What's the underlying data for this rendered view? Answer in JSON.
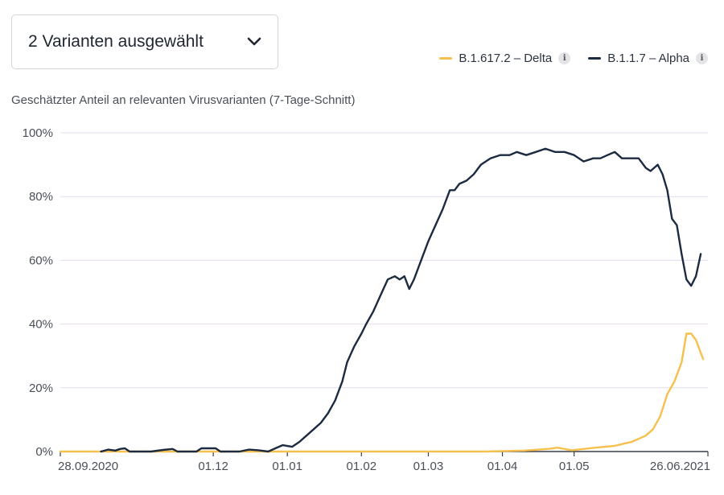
{
  "selector": {
    "label": "2 Varianten ausgewählt",
    "icon": "chevron-down-icon"
  },
  "legend": [
    {
      "label": "B.1.617.2 – Delta",
      "color": "#f5c04e",
      "icon": "info-icon"
    },
    {
      "label": "B.1.1.7 – Alpha",
      "color": "#1c2b40",
      "icon": "info-icon"
    }
  ],
  "chart_data": {
    "type": "line",
    "title": "Geschätzter Anteil an relevanten Virusvarianten (7-Tage-Schnitt)",
    "y_ticks": [
      "0%",
      "20%",
      "40%",
      "60%",
      "80%",
      "100%"
    ],
    "ylim": [
      0,
      100
    ],
    "x_ticks": [
      {
        "label": "28.09.2020",
        "date": "2020-09-28"
      },
      {
        "label": "01.12",
        "date": "2020-12-01"
      },
      {
        "label": "01.01",
        "date": "2021-01-01"
      },
      {
        "label": "01.02",
        "date": "2021-02-01"
      },
      {
        "label": "01.03",
        "date": "2021-03-01"
      },
      {
        "label": "01.04",
        "date": "2021-04-01"
      },
      {
        "label": "01.05",
        "date": "2021-05-01"
      },
      {
        "label": "26.06.2021",
        "date": "2021-06-26"
      }
    ],
    "xlim": [
      "2020-09-28",
      "2021-06-26"
    ],
    "grid": true,
    "legend_position": "top-right",
    "series": [
      {
        "name": "B.1.617.2 – Delta",
        "color": "#f5c04e",
        "points": [
          [
            "2020-09-28",
            0
          ],
          [
            "2021-03-25",
            0
          ],
          [
            "2021-04-10",
            0.3
          ],
          [
            "2021-04-20",
            0.8
          ],
          [
            "2021-04-24",
            1.2
          ],
          [
            "2021-04-30",
            0.4
          ],
          [
            "2021-05-05",
            0.8
          ],
          [
            "2021-05-10",
            1.2
          ],
          [
            "2021-05-14",
            1.5
          ],
          [
            "2021-05-18",
            1.8
          ],
          [
            "2021-05-22",
            2.5
          ],
          [
            "2021-05-25",
            3
          ],
          [
            "2021-05-28",
            4
          ],
          [
            "2021-05-31",
            5
          ],
          [
            "2021-06-03",
            7
          ],
          [
            "2021-06-06",
            11
          ],
          [
            "2021-06-09",
            18
          ],
          [
            "2021-06-12",
            22
          ],
          [
            "2021-06-15",
            28
          ],
          [
            "2021-06-17",
            37
          ],
          [
            "2021-06-19",
            37
          ],
          [
            "2021-06-21",
            35
          ],
          [
            "2021-06-24",
            29
          ]
        ]
      },
      {
        "name": "B.1.1.7 – Alpha",
        "color": "#1c2b40",
        "points": [
          [
            "2020-10-15",
            0
          ],
          [
            "2020-10-18",
            0.6
          ],
          [
            "2020-10-21",
            0.3
          ],
          [
            "2020-10-23",
            0.8
          ],
          [
            "2020-10-25",
            1
          ],
          [
            "2020-10-27",
            0
          ],
          [
            "2020-11-05",
            0
          ],
          [
            "2020-11-10",
            0.5
          ],
          [
            "2020-11-14",
            0.8
          ],
          [
            "2020-11-16",
            0
          ],
          [
            "2020-11-24",
            0
          ],
          [
            "2020-11-26",
            1
          ],
          [
            "2020-12-02",
            1
          ],
          [
            "2020-12-04",
            0
          ],
          [
            "2020-12-12",
            0
          ],
          [
            "2020-12-16",
            0.6
          ],
          [
            "2020-12-20",
            0.4
          ],
          [
            "2020-12-24",
            0
          ],
          [
            "2020-12-27",
            1
          ],
          [
            "2020-12-30",
            2
          ],
          [
            "2021-01-03",
            1.5
          ],
          [
            "2021-01-06",
            3
          ],
          [
            "2021-01-09",
            5
          ],
          [
            "2021-01-12",
            7
          ],
          [
            "2021-01-15",
            9
          ],
          [
            "2021-01-18",
            12
          ],
          [
            "2021-01-21",
            16
          ],
          [
            "2021-01-24",
            22
          ],
          [
            "2021-01-26",
            28
          ],
          [
            "2021-01-29",
            33
          ],
          [
            "2021-02-01",
            37
          ],
          [
            "2021-02-03",
            40
          ],
          [
            "2021-02-06",
            44
          ],
          [
            "2021-02-09",
            49
          ],
          [
            "2021-02-12",
            54
          ],
          [
            "2021-02-15",
            55
          ],
          [
            "2021-02-17",
            54
          ],
          [
            "2021-02-19",
            55
          ],
          [
            "2021-02-21",
            51
          ],
          [
            "2021-02-23",
            54
          ],
          [
            "2021-02-26",
            60
          ],
          [
            "2021-03-01",
            66
          ],
          [
            "2021-03-04",
            71
          ],
          [
            "2021-03-07",
            76
          ],
          [
            "2021-03-10",
            82
          ],
          [
            "2021-03-12",
            82
          ],
          [
            "2021-03-14",
            84
          ],
          [
            "2021-03-17",
            85
          ],
          [
            "2021-03-20",
            87
          ],
          [
            "2021-03-23",
            90
          ],
          [
            "2021-03-27",
            92
          ],
          [
            "2021-03-31",
            93
          ],
          [
            "2021-04-04",
            93
          ],
          [
            "2021-04-07",
            94
          ],
          [
            "2021-04-11",
            93
          ],
          [
            "2021-04-15",
            94
          ],
          [
            "2021-04-19",
            95
          ],
          [
            "2021-04-23",
            94
          ],
          [
            "2021-04-27",
            94
          ],
          [
            "2021-05-01",
            93
          ],
          [
            "2021-05-05",
            91
          ],
          [
            "2021-05-09",
            92
          ],
          [
            "2021-05-12",
            92
          ],
          [
            "2021-05-15",
            93
          ],
          [
            "2021-05-18",
            94
          ],
          [
            "2021-05-21",
            92
          ],
          [
            "2021-05-25",
            92
          ],
          [
            "2021-05-28",
            92
          ],
          [
            "2021-05-31",
            89
          ],
          [
            "2021-06-02",
            88
          ],
          [
            "2021-06-05",
            90
          ],
          [
            "2021-06-07",
            87
          ],
          [
            "2021-06-09",
            82
          ],
          [
            "2021-06-11",
            73
          ],
          [
            "2021-06-13",
            71
          ],
          [
            "2021-06-15",
            62
          ],
          [
            "2021-06-17",
            54
          ],
          [
            "2021-06-19",
            52
          ],
          [
            "2021-06-21",
            55
          ],
          [
            "2021-06-23",
            62
          ]
        ]
      }
    ]
  }
}
